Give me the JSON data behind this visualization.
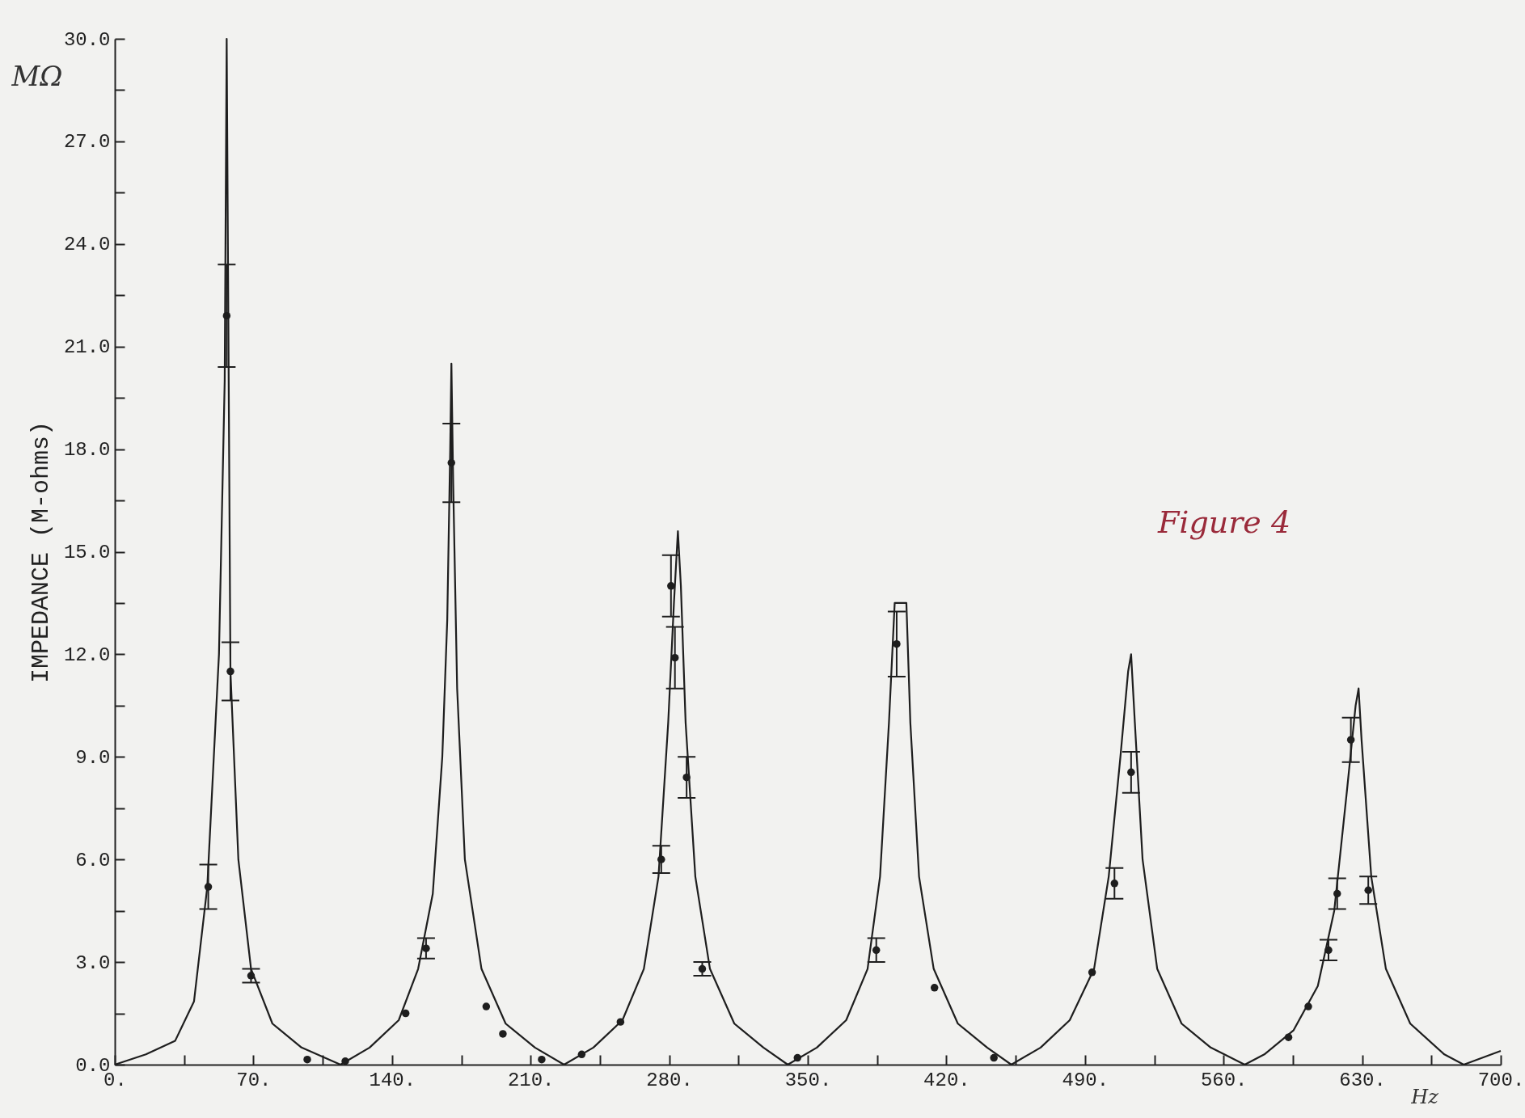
{
  "chart_data": {
    "type": "line",
    "ylabel": "IMPEDANCE (M-ohms)",
    "annotations": [
      "MΩ",
      "Figure 4",
      "Hz"
    ],
    "xlim": [
      0,
      700
    ],
    "ylim": [
      0,
      30
    ],
    "xticks": [
      {
        "value": 0,
        "label": "0."
      },
      {
        "value": 35,
        "label": null
      },
      {
        "value": 70,
        "label": "70."
      },
      {
        "value": 105,
        "label": null
      },
      {
        "value": 140,
        "label": "140."
      },
      {
        "value": 175,
        "label": null
      },
      {
        "value": 210,
        "label": "210."
      },
      {
        "value": 245,
        "label": null
      },
      {
        "value": 280,
        "label": "280."
      },
      {
        "value": 315,
        "label": null
      },
      {
        "value": 350,
        "label": "350."
      },
      {
        "value": 385,
        "label": null
      },
      {
        "value": 420,
        "label": "420."
      },
      {
        "value": 455,
        "label": null
      },
      {
        "value": 490,
        "label": "490."
      },
      {
        "value": 525,
        "label": null
      },
      {
        "value": 560,
        "label": "560."
      },
      {
        "value": 595,
        "label": null
      },
      {
        "value": 630,
        "label": "630."
      },
      {
        "value": 665,
        "label": null
      },
      {
        "value": 700,
        "label": "700."
      }
    ],
    "yticks": [
      {
        "value": 0,
        "label": "0.0"
      },
      {
        "value": 1.5,
        "label": null
      },
      {
        "value": 3,
        "label": "3.0"
      },
      {
        "value": 4.5,
        "label": null
      },
      {
        "value": 6,
        "label": "6.0"
      },
      {
        "value": 7.5,
        "label": null
      },
      {
        "value": 9,
        "label": "9.0"
      },
      {
        "value": 10.5,
        "label": null
      },
      {
        "value": 12,
        "label": "12.0"
      },
      {
        "value": 13.5,
        "label": null
      },
      {
        "value": 15,
        "label": "15.0"
      },
      {
        "value": 16.5,
        "label": null
      },
      {
        "value": 18,
        "label": "18.0"
      },
      {
        "value": 19.5,
        "label": null
      },
      {
        "value": 21,
        "label": "21.0"
      },
      {
        "value": 22.5,
        "label": null
      },
      {
        "value": 24,
        "label": "24.0"
      },
      {
        "value": 25.5,
        "label": null
      },
      {
        "value": 27,
        "label": "27.0"
      },
      {
        "value": 28.5,
        "label": null
      },
      {
        "value": 30,
        "label": "30.0"
      }
    ],
    "grid": false,
    "series": [
      {
        "type": "line",
        "color": "#1e1e1e",
        "marker": "none",
        "line_style": "solid",
        "x": [
          0,
          15.7,
          30.5,
          40,
          46.7,
          52.6,
          55.5,
          56.5,
          57,
          58.4,
          62.4,
          68.8,
          79.6,
          94.3,
          114,
          128.7,
          143.4,
          153.2,
          160.6,
          165.4,
          167.9,
          169.4,
          170,
          170.9,
          172.9,
          176.8,
          185.2,
          197.4,
          212.2,
          226.9,
          241.7,
          256.4,
          267.2,
          274.6,
          279.5,
          282.4,
          284.4,
          285.9,
          288.3,
          293.2,
          300.6,
          312.9,
          327.6,
          339.9,
          354.6,
          369.4,
          380.2,
          386.5,
          391,
          393.9,
          399.8,
          401.8,
          406.2,
          413.6,
          425.8,
          440.6,
          452.8,
          467.6,
          482.3,
          494.6,
          502,
          507.9,
          511.8,
          513.3,
          515.2,
          519.1,
          526.5,
          538.8,
          553.5,
          570.7,
          580.6,
          595.3,
          607.6,
          615.9,
          622.3,
          626.7,
          628.2,
          629.7,
          634.6,
          642,
          654.3,
          671.5,
          681.3,
          700
        ],
        "values": [
          0,
          0.3,
          0.7,
          1.85,
          5.2,
          12,
          20,
          30,
          25,
          11.5,
          6,
          2.8,
          1.2,
          0.5,
          0,
          0.5,
          1.3,
          2.8,
          5,
          9,
          13,
          18,
          20.5,
          17,
          11,
          6,
          2.8,
          1.2,
          0.5,
          0,
          0.5,
          1.3,
          2.8,
          5.5,
          10,
          13.5,
          15.6,
          14,
          10,
          5.5,
          2.8,
          1.2,
          0.5,
          0,
          0.5,
          1.3,
          2.8,
          5.5,
          10,
          13.5,
          13.5,
          10,
          5.5,
          2.8,
          1.2,
          0.5,
          0,
          0.5,
          1.3,
          2.8,
          5.5,
          9,
          11.5,
          12,
          10,
          6,
          2.8,
          1.2,
          0.5,
          0,
          0.3,
          1,
          2.3,
          4.5,
          8,
          10.5,
          11,
          9.5,
          5.5,
          2.8,
          1.2,
          0.3,
          0,
          0.4
        ]
      },
      {
        "type": "scatter",
        "color": "#1e1e1e",
        "marker": "circle",
        "x": [
          47.2,
          56.5,
          58.4,
          68.8,
          97.2,
          116.4,
          146.9,
          157.2,
          170,
          187.6,
          196,
          215.6,
          235.8,
          255.4,
          276,
          280.9,
          282.9,
          288.8,
          296.7,
          344.8,
          384.6,
          394.9,
          414,
          444,
          493.6,
          504.9,
          513.3,
          592.8,
          602.8,
          613,
          617.4,
          624.3,
          633.1
        ],
        "values": [
          5.2,
          21.9,
          11.5,
          2.6,
          0.15,
          0.1,
          1.5,
          3.4,
          17.6,
          1.7,
          0.9,
          0.15,
          0.3,
          1.25,
          6,
          14,
          11.9,
          8.4,
          2.8,
          0.2,
          3.35,
          12.3,
          2.25,
          0.2,
          2.7,
          5.3,
          8.55,
          0.8,
          1.7,
          3.35,
          5,
          9.5,
          5.1
        ],
        "errors": [
          0.65,
          1.5,
          0.85,
          0.2,
          null,
          null,
          null,
          0.3,
          1.15,
          null,
          null,
          null,
          null,
          null,
          0.4,
          0.9,
          0.9,
          0.6,
          0.2,
          null,
          0.35,
          0.95,
          null,
          null,
          null,
          0.45,
          0.6,
          null,
          null,
          0.3,
          0.45,
          0.65,
          0.4
        ]
      }
    ]
  }
}
